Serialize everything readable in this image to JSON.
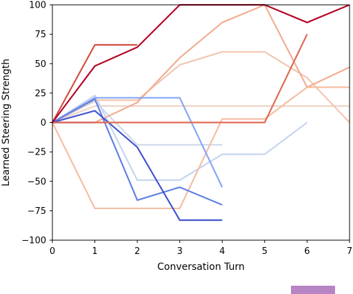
{
  "chart_data": {
    "type": "line",
    "xlabel": "Conversation Turn",
    "ylabel": "Learned Steering Strength",
    "xlim": [
      0,
      7
    ],
    "ylim": [
      -100,
      100
    ],
    "xticks": [
      "0",
      "1",
      "2",
      "3",
      "4",
      "5",
      "6",
      "7"
    ],
    "yticks": [
      "100",
      "75",
      "50",
      "25",
      "0",
      "−25",
      "−50",
      "−75",
      "−100"
    ],
    "grid": false,
    "colormap": "coolwarm",
    "series": [
      {
        "color": "#edd3c5",
        "x": [
          0,
          1,
          7
        ],
        "y": [
          0,
          14,
          14
        ]
      },
      {
        "color": "#d0d9ea",
        "x": [
          0,
          1,
          2,
          4
        ],
        "y": [
          0,
          18,
          -19,
          -19
        ]
      },
      {
        "color": "#c5d4f0",
        "x": [
          0,
          1,
          2,
          3,
          4,
          5,
          6
        ],
        "y": [
          0,
          23,
          -49,
          -49,
          -27,
          -27,
          0
        ]
      },
      {
        "color": "#f2c6b0",
        "x": [
          0,
          1,
          2,
          3,
          4,
          5,
          6,
          7
        ],
        "y": [
          0,
          19,
          19,
          49,
          60,
          60,
          38,
          0
        ]
      },
      {
        "color": "#f4bea3",
        "x": [
          0,
          1,
          2,
          3,
          4,
          5,
          6,
          7
        ],
        "y": [
          0,
          -73,
          -73,
          -73,
          3,
          3,
          30,
          30
        ]
      },
      {
        "color": "#f2ad91",
        "x": [
          0,
          1,
          2,
          3,
          4,
          5,
          6,
          7
        ],
        "y": [
          0,
          0,
          17,
          55,
          85,
          100,
          30,
          47
        ]
      },
      {
        "color": "#83a6f5",
        "x": [
          0,
          1,
          2,
          3,
          4
        ],
        "y": [
          0,
          21,
          21,
          21,
          -55
        ]
      },
      {
        "color": "#6180e6",
        "x": [
          0,
          1,
          2,
          3,
          4
        ],
        "y": [
          0,
          20,
          -66,
          -55,
          -70
        ]
      },
      {
        "color": "#4154cf",
        "x": [
          0,
          1,
          2,
          3,
          4
        ],
        "y": [
          0,
          10,
          -21,
          -83,
          -83
        ]
      },
      {
        "color": "#3b4cc0",
        "x": [
          0,
          1
        ],
        "y": [
          0,
          0
        ]
      },
      {
        "color": "#de6a53",
        "x": [
          0,
          1,
          2,
          3,
          4,
          5,
          6
        ],
        "y": [
          0,
          0,
          0,
          0,
          0,
          0,
          75
        ]
      },
      {
        "color": "#d14e42",
        "x": [
          0,
          1,
          2
        ],
        "y": [
          0,
          66,
          66
        ]
      },
      {
        "color": "#b40426",
        "x": [
          0,
          1,
          2,
          3,
          4,
          5,
          6,
          7
        ],
        "y": [
          0,
          48,
          64,
          100,
          100,
          100,
          85,
          100
        ]
      }
    ]
  }
}
